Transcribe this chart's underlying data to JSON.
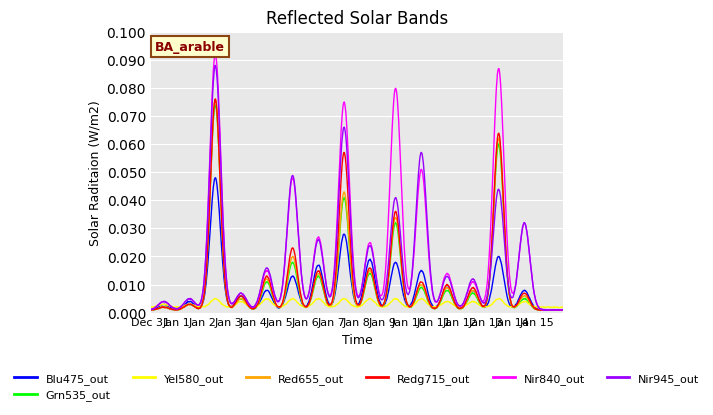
{
  "title": "Reflected Solar Bands",
  "xlabel": "Time",
  "ylabel": "Solar Raditaion (W/m2)",
  "annotation_text": "BA_arable",
  "annotation_bg": "#FFFFCC",
  "annotation_border": "#8B4513",
  "annotation_text_color": "#8B0000",
  "ylim": [
    0.0,
    0.1
  ],
  "yticks": [
    0.0,
    0.01,
    0.02,
    0.03,
    0.04,
    0.05,
    0.06,
    0.07,
    0.08,
    0.09,
    0.1
  ],
  "xtick_labels": [
    "Dec 31",
    "Jan 1",
    "Jan 2",
    "Jan 3",
    "Jan 4",
    "Jan 5",
    "Jan 6",
    "Jan 7",
    "Jan 8",
    "Jan 9",
    "Jan 10",
    "Jan 11",
    "Jan 12",
    "Jan 13",
    "Jan 14",
    "Jan 15"
  ],
  "bg_color": "#E8E8E8",
  "grid_color": "white",
  "series": [
    {
      "name": "Blu475_out",
      "color": "#0000FF"
    },
    {
      "name": "Grn535_out",
      "color": "#00FF00"
    },
    {
      "name": "Yel580_out",
      "color": "#FFFF00"
    },
    {
      "name": "Red655_out",
      "color": "#FFA500"
    },
    {
      "name": "Redg715_out",
      "color": "#FF0000"
    },
    {
      "name": "Nir840_out",
      "color": "#FF00FF"
    },
    {
      "name": "Nir945_out",
      "color": "#9900FF"
    }
  ],
  "day_peaks_magenta": [
    0.003,
    0.004,
    0.091,
    0.006,
    0.014,
    0.047,
    0.026,
    0.074,
    0.024,
    0.079,
    0.05,
    0.013,
    0.01,
    0.086,
    0.031,
    0.0
  ],
  "day_peaks_purple": [
    0.003,
    0.004,
    0.087,
    0.006,
    0.015,
    0.048,
    0.025,
    0.065,
    0.023,
    0.04,
    0.056,
    0.012,
    0.011,
    0.043,
    0.031,
    0.0
  ],
  "day_peaks_blue": [
    0.002,
    0.003,
    0.047,
    0.005,
    0.007,
    0.012,
    0.016,
    0.027,
    0.018,
    0.017,
    0.014,
    0.008,
    0.007,
    0.019,
    0.007,
    0.0
  ],
  "day_peaks_red": [
    0.001,
    0.002,
    0.075,
    0.005,
    0.012,
    0.022,
    0.014,
    0.056,
    0.015,
    0.035,
    0.01,
    0.009,
    0.008,
    0.063,
    0.006,
    0.0
  ],
  "day_peaks_orange": [
    0.001,
    0.002,
    0.075,
    0.004,
    0.011,
    0.019,
    0.013,
    0.042,
    0.014,
    0.033,
    0.009,
    0.008,
    0.007,
    0.061,
    0.005,
    0.0
  ],
  "day_peaks_green": [
    0.001,
    0.002,
    0.073,
    0.004,
    0.01,
    0.017,
    0.012,
    0.04,
    0.013,
    0.031,
    0.008,
    0.007,
    0.006,
    0.059,
    0.004,
    0.0
  ],
  "day_peaks_yellow": [
    0.001,
    0.001,
    0.003,
    0.002,
    0.003,
    0.003,
    0.003,
    0.003,
    0.003,
    0.003,
    0.003,
    0.002,
    0.002,
    0.003,
    0.002,
    0.0
  ]
}
